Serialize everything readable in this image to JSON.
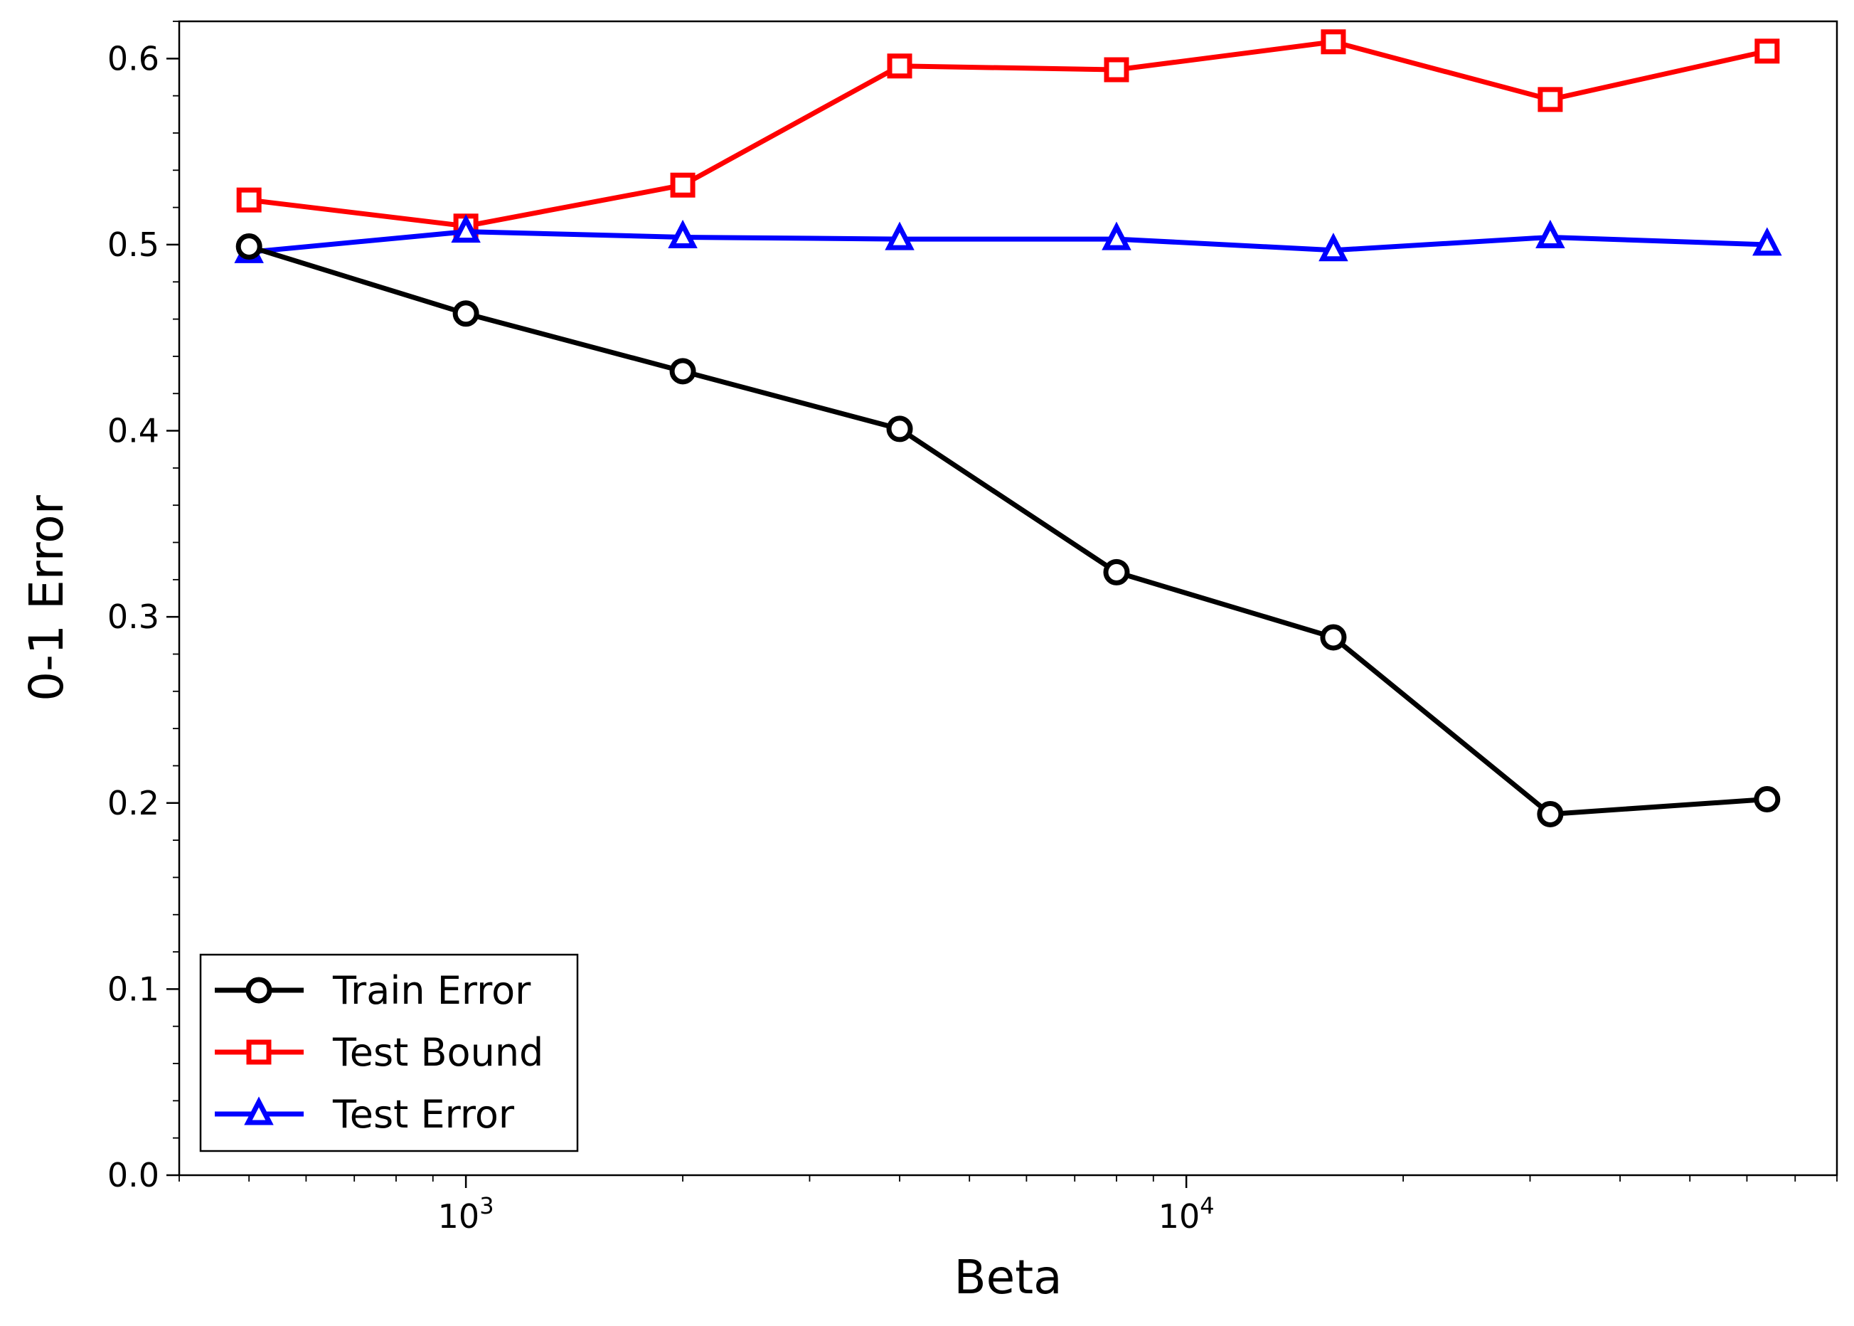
{
  "chart_data": {
    "type": "line",
    "title": "",
    "xlabel": "Beta",
    "ylabel": "0-1 Error",
    "x_scale": "log",
    "xlim": [
      400,
      80000
    ],
    "ylim": [
      0.0,
      0.62
    ],
    "grid": false,
    "legend_position": "lower-left",
    "x": [
      500,
      1000,
      2000,
      4000,
      8000,
      16000,
      32000,
      64000
    ],
    "x_ticks": [
      {
        "value": 1000,
        "base": "10",
        "exp": "3"
      },
      {
        "value": 10000,
        "base": "10",
        "exp": "4"
      }
    ],
    "y_ticks": [
      {
        "value": 0.0,
        "label": "0.0"
      },
      {
        "value": 0.1,
        "label": "0.1"
      },
      {
        "value": 0.2,
        "label": "0.2"
      },
      {
        "value": 0.3,
        "label": "0.3"
      },
      {
        "value": 0.4,
        "label": "0.4"
      },
      {
        "value": 0.5,
        "label": "0.5"
      },
      {
        "value": 0.6,
        "label": "0.6"
      }
    ],
    "series": [
      {
        "name": "Train Error",
        "color": "#000000",
        "marker": "circle",
        "values": [
          0.499,
          0.463,
          0.432,
          0.401,
          0.324,
          0.289,
          0.194,
          0.202
        ]
      },
      {
        "name": "Test Bound",
        "color": "#ff0000",
        "marker": "square",
        "values": [
          0.524,
          0.51,
          0.532,
          0.596,
          0.594,
          0.609,
          0.578,
          0.604
        ]
      },
      {
        "name": "Test Error",
        "color": "#0000ff",
        "marker": "triangle",
        "values": [
          0.496,
          0.507,
          0.504,
          0.503,
          0.503,
          0.497,
          0.504,
          0.5
        ]
      }
    ]
  }
}
